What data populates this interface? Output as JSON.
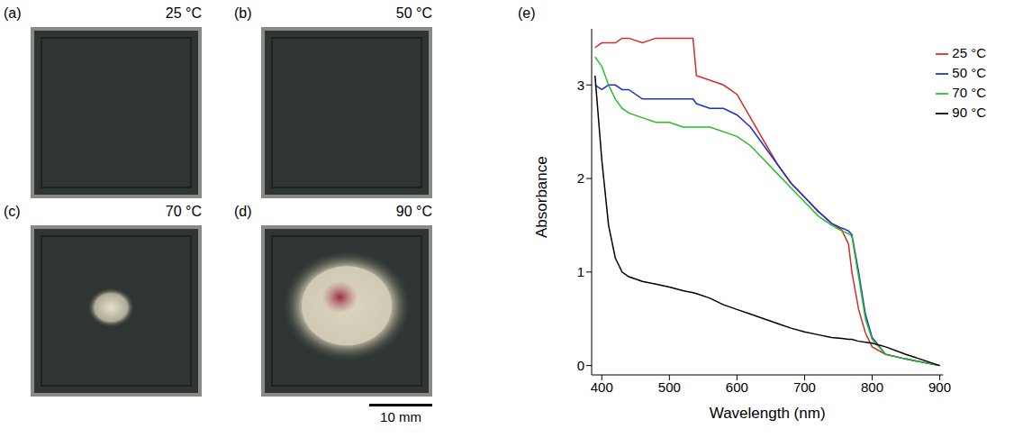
{
  "photos": [
    {
      "label": "(a)",
      "title": "25 °C"
    },
    {
      "label": "(b)",
      "title": "50 °C"
    },
    {
      "label": "(c)",
      "title": "70 °C"
    },
    {
      "label": "(d)",
      "title": "90 °C"
    }
  ],
  "scale_bar": "10 mm",
  "chart_data": {
    "type": "line",
    "label": "(e)",
    "x_label": "Wavelength (nm)",
    "y_label": "Absorbance",
    "xlim": [
      385,
      905
    ],
    "xticks": [
      400,
      500,
      600,
      700,
      800,
      900
    ],
    "ylim": [
      -0.1,
      3.6
    ],
    "yticks": [
      0,
      1,
      2,
      3
    ],
    "grid": false,
    "legend": "upper right",
    "x": [
      390,
      400,
      410,
      420,
      430,
      440,
      460,
      480,
      500,
      520,
      535,
      540,
      560,
      580,
      600,
      620,
      640,
      660,
      680,
      700,
      720,
      740,
      755,
      765,
      770,
      780,
      790,
      800,
      820,
      850,
      900
    ],
    "series": [
      {
        "name": "25 °C",
        "color": "#d42a2a",
        "values": [
          3.4,
          3.45,
          3.45,
          3.45,
          3.5,
          3.5,
          3.45,
          3.5,
          3.5,
          3.5,
          3.5,
          3.1,
          3.05,
          3.0,
          2.9,
          2.65,
          2.4,
          2.15,
          1.95,
          1.8,
          1.65,
          1.52,
          1.45,
          1.3,
          1.0,
          0.6,
          0.35,
          0.2,
          0.12,
          0.07,
          0
        ]
      },
      {
        "name": "50 °C",
        "color": "#1f2fd0",
        "values": [
          3.0,
          2.95,
          3.0,
          3.0,
          2.95,
          2.95,
          2.85,
          2.85,
          2.85,
          2.85,
          2.85,
          2.8,
          2.75,
          2.75,
          2.68,
          2.55,
          2.35,
          2.15,
          1.95,
          1.8,
          1.65,
          1.52,
          1.47,
          1.44,
          1.4,
          1.0,
          0.55,
          0.3,
          0.12,
          0.07,
          0
        ]
      },
      {
        "name": "70 °C",
        "color": "#22c022",
        "values": [
          3.3,
          3.2,
          3.0,
          2.85,
          2.75,
          2.7,
          2.65,
          2.6,
          2.6,
          2.55,
          2.55,
          2.55,
          2.55,
          2.5,
          2.45,
          2.35,
          2.2,
          2.05,
          1.9,
          1.75,
          1.6,
          1.5,
          1.44,
          1.41,
          1.38,
          0.95,
          0.5,
          0.28,
          0.12,
          0.07,
          0
        ]
      },
      {
        "name": "90 °C",
        "color": "#000000",
        "values": [
          3.1,
          2.2,
          1.5,
          1.15,
          1.0,
          0.95,
          0.9,
          0.87,
          0.84,
          0.8,
          0.78,
          0.77,
          0.72,
          0.65,
          0.6,
          0.55,
          0.5,
          0.45,
          0.4,
          0.36,
          0.33,
          0.3,
          0.29,
          0.28,
          0.28,
          0.26,
          0.25,
          0.24,
          0.2,
          0.12,
          0
        ]
      }
    ]
  }
}
